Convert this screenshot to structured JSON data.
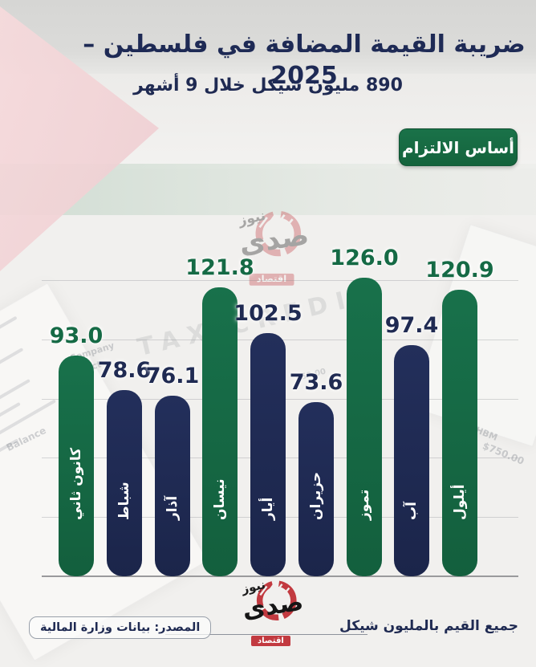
{
  "header": {
    "title": "ضريبة القيمة المضافة في فلسطين – 2025",
    "subtitle": "890 مليون شيكل خلال 9 أشهر",
    "badge_label": "أساس الالتزام"
  },
  "chart_data": {
    "type": "bar",
    "title": "ضريبة القيمة المضافة في فلسطين – 2025",
    "categories": [
      "كانون ثاني",
      "شباط",
      "آذار",
      "نيسان",
      "أيار",
      "حزيران",
      "تموز",
      "آب",
      "أيلول"
    ],
    "values": [
      93.0,
      78.6,
      76.1,
      121.8,
      102.5,
      73.6,
      126.0,
      97.4,
      120.9
    ],
    "bar_colors": [
      "green",
      "navy",
      "navy",
      "green",
      "navy",
      "navy",
      "green",
      "navy",
      "green"
    ],
    "unit": "مليون شيكل",
    "ylim": [
      0,
      135
    ],
    "grid_values": [
      25,
      50,
      75,
      100,
      125
    ],
    "value_label_decimals": 1,
    "legend_position": "none"
  },
  "footer": {
    "source": "المصدر: بيانات وزارة المالية",
    "unit_note": "جميع القيم بالمليون شيكل"
  },
  "logo": {
    "primary": "صدى",
    "secondary": "نيوز",
    "tag": "اقتصاد"
  },
  "background_texture": {
    "tax_watermark": "TAX CREDIT",
    "snippets": [
      "Company",
      "Contact",
      "Set di",
      "Balance",
      "$50.00",
      "HBM",
      "$750.00"
    ]
  },
  "colors": {
    "green": "#156a43",
    "navy": "#1f2a52",
    "red": "#c23a40",
    "title_navy": "#1e2a55",
    "background": "#f1f0ee"
  }
}
